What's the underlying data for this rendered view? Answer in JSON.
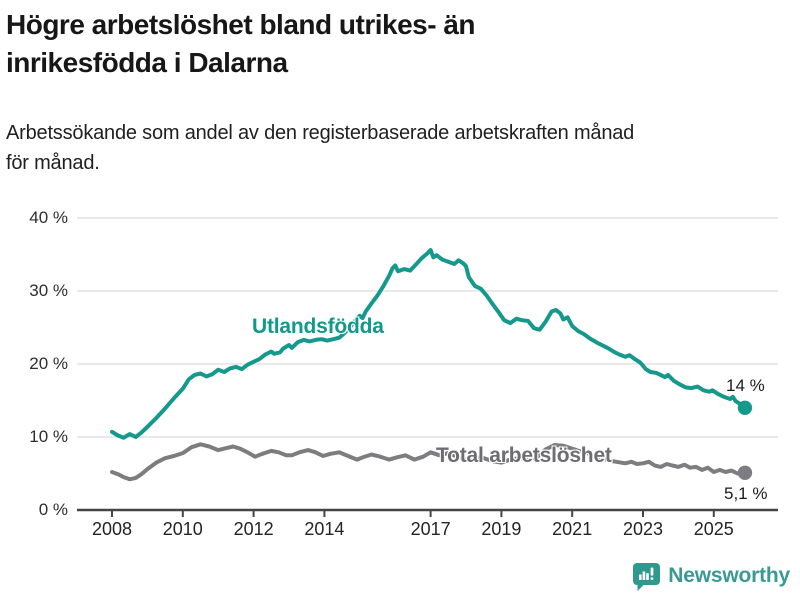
{
  "header": {
    "title_lines": [
      "Högre arbetslöshet bland utrikes- än",
      "inrikesfödda i Dalarna"
    ],
    "subtitle_lines": [
      "Arbetssökande som andel av den registerbaserade arbetskraften månad",
      "för månad."
    ]
  },
  "colors": {
    "teal_line": "#14998c",
    "gray_line": "#7c7c81",
    "teal_label": "#0f9a8c",
    "gray_label": "#6c6c71",
    "grid": "#dcdcdc",
    "axis": "#454545",
    "logo": "#2f9990"
  },
  "chart_data": {
    "type": "line",
    "title": "Högre arbetslöshet bland utrikes- än inrikesfödda i Dalarna",
    "subtitle": "Arbetssökande som andel av den registerbaserade arbetskraften månad för månad.",
    "xlabel": "",
    "ylabel": "",
    "grid": "horizontal",
    "ylim": [
      0,
      43
    ],
    "y_ticks": [
      40,
      30,
      20,
      10,
      0
    ],
    "y_tick_suffix": " %",
    "x_ticks": [
      2008,
      2010,
      2012,
      2014,
      2017,
      2019,
      2021,
      2023,
      2025
    ],
    "series": [
      {
        "name": "Utlandsfödda",
        "end_label": "14 %",
        "end_value": 14,
        "points": [
          [
            2008.0,
            10.7
          ],
          [
            2008.17,
            10.2
          ],
          [
            2008.33,
            9.9
          ],
          [
            2008.5,
            10.4
          ],
          [
            2008.67,
            10.0
          ],
          [
            2008.83,
            10.6
          ],
          [
            2009.0,
            11.4
          ],
          [
            2009.25,
            12.6
          ],
          [
            2009.5,
            13.9
          ],
          [
            2009.75,
            15.3
          ],
          [
            2010.0,
            16.6
          ],
          [
            2010.17,
            17.9
          ],
          [
            2010.33,
            18.5
          ],
          [
            2010.5,
            18.7
          ],
          [
            2010.67,
            18.3
          ],
          [
            2010.83,
            18.6
          ],
          [
            2011.0,
            19.2
          ],
          [
            2011.17,
            18.9
          ],
          [
            2011.33,
            19.4
          ],
          [
            2011.5,
            19.6
          ],
          [
            2011.67,
            19.3
          ],
          [
            2011.83,
            19.9
          ],
          [
            2012.0,
            20.3
          ],
          [
            2012.17,
            20.7
          ],
          [
            2012.33,
            21.3
          ],
          [
            2012.5,
            21.7
          ],
          [
            2012.58,
            21.4
          ],
          [
            2012.75,
            21.6
          ],
          [
            2012.83,
            22.1
          ],
          [
            2013.0,
            22.6
          ],
          [
            2013.08,
            22.2
          ],
          [
            2013.25,
            23.0
          ],
          [
            2013.42,
            23.3
          ],
          [
            2013.58,
            23.1
          ],
          [
            2013.75,
            23.3
          ],
          [
            2013.92,
            23.4
          ],
          [
            2014.08,
            23.2
          ],
          [
            2014.25,
            23.4
          ],
          [
            2014.42,
            23.6
          ],
          [
            2014.58,
            24.3
          ],
          [
            2014.75,
            25.2
          ],
          [
            2014.92,
            26.2
          ],
          [
            2015.0,
            26.6
          ],
          [
            2015.08,
            26.3
          ],
          [
            2015.17,
            27.2
          ],
          [
            2015.33,
            28.3
          ],
          [
            2015.5,
            29.4
          ],
          [
            2015.67,
            30.7
          ],
          [
            2015.83,
            32.1
          ],
          [
            2015.92,
            33.1
          ],
          [
            2016.0,
            33.5
          ],
          [
            2016.08,
            32.7
          ],
          [
            2016.25,
            33.0
          ],
          [
            2016.42,
            32.8
          ],
          [
            2016.58,
            33.6
          ],
          [
            2016.75,
            34.5
          ],
          [
            2016.92,
            35.2
          ],
          [
            2017.0,
            35.6
          ],
          [
            2017.08,
            34.6
          ],
          [
            2017.17,
            34.9
          ],
          [
            2017.33,
            34.3
          ],
          [
            2017.5,
            34.0
          ],
          [
            2017.67,
            33.7
          ],
          [
            2017.79,
            34.2
          ],
          [
            2017.92,
            33.8
          ],
          [
            2018.0,
            33.4
          ],
          [
            2018.08,
            31.9
          ],
          [
            2018.25,
            30.7
          ],
          [
            2018.42,
            30.3
          ],
          [
            2018.58,
            29.4
          ],
          [
            2018.75,
            28.2
          ],
          [
            2018.92,
            27.1
          ],
          [
            2019.08,
            26.0
          ],
          [
            2019.25,
            25.6
          ],
          [
            2019.42,
            26.2
          ],
          [
            2019.58,
            26.0
          ],
          [
            2019.75,
            25.9
          ],
          [
            2019.92,
            24.9
          ],
          [
            2020.08,
            24.7
          ],
          [
            2020.25,
            25.8
          ],
          [
            2020.42,
            27.2
          ],
          [
            2020.54,
            27.4
          ],
          [
            2020.67,
            26.9
          ],
          [
            2020.75,
            26.1
          ],
          [
            2020.87,
            26.4
          ],
          [
            2021.0,
            25.2
          ],
          [
            2021.17,
            24.5
          ],
          [
            2021.33,
            24.1
          ],
          [
            2021.5,
            23.5
          ],
          [
            2021.75,
            22.8
          ],
          [
            2022.0,
            22.2
          ],
          [
            2022.17,
            21.7
          ],
          [
            2022.33,
            21.3
          ],
          [
            2022.5,
            21.0
          ],
          [
            2022.62,
            21.2
          ],
          [
            2022.79,
            20.6
          ],
          [
            2022.92,
            20.2
          ],
          [
            2023.08,
            19.3
          ],
          [
            2023.21,
            18.9
          ],
          [
            2023.37,
            18.8
          ],
          [
            2023.54,
            18.4
          ],
          [
            2023.62,
            18.2
          ],
          [
            2023.71,
            18.5
          ],
          [
            2023.87,
            17.7
          ],
          [
            2024.04,
            17.2
          ],
          [
            2024.21,
            16.8
          ],
          [
            2024.37,
            16.7
          ],
          [
            2024.54,
            16.9
          ],
          [
            2024.71,
            16.4
          ],
          [
            2024.87,
            16.2
          ],
          [
            2024.96,
            16.4
          ],
          [
            2025.12,
            15.9
          ],
          [
            2025.29,
            15.5
          ],
          [
            2025.46,
            15.2
          ],
          [
            2025.54,
            15.5
          ],
          [
            2025.62,
            14.9
          ],
          [
            2025.75,
            14.5
          ],
          [
            2025.88,
            14.0
          ]
        ]
      },
      {
        "name": "Total arbetslöshet",
        "end_label": "5,1 %",
        "end_value": 5.1,
        "points": [
          [
            2008.0,
            5.2
          ],
          [
            2008.17,
            4.9
          ],
          [
            2008.33,
            4.5
          ],
          [
            2008.5,
            4.2
          ],
          [
            2008.67,
            4.4
          ],
          [
            2008.83,
            4.9
          ],
          [
            2009.0,
            5.6
          ],
          [
            2009.25,
            6.5
          ],
          [
            2009.5,
            7.1
          ],
          [
            2009.75,
            7.4
          ],
          [
            2010.0,
            7.8
          ],
          [
            2010.25,
            8.6
          ],
          [
            2010.5,
            9.0
          ],
          [
            2010.75,
            8.7
          ],
          [
            2011.0,
            8.2
          ],
          [
            2011.25,
            8.5
          ],
          [
            2011.42,
            8.7
          ],
          [
            2011.62,
            8.4
          ],
          [
            2011.83,
            7.9
          ],
          [
            2012.04,
            7.3
          ],
          [
            2012.25,
            7.7
          ],
          [
            2012.5,
            8.1
          ],
          [
            2012.71,
            7.9
          ],
          [
            2012.92,
            7.5
          ],
          [
            2013.08,
            7.5
          ],
          [
            2013.29,
            7.9
          ],
          [
            2013.54,
            8.2
          ],
          [
            2013.75,
            7.9
          ],
          [
            2013.96,
            7.4
          ],
          [
            2014.17,
            7.7
          ],
          [
            2014.42,
            7.9
          ],
          [
            2014.67,
            7.4
          ],
          [
            2014.92,
            6.9
          ],
          [
            2015.08,
            7.2
          ],
          [
            2015.33,
            7.6
          ],
          [
            2015.58,
            7.3
          ],
          [
            2015.83,
            6.9
          ],
          [
            2016.04,
            7.2
          ],
          [
            2016.29,
            7.5
          ],
          [
            2016.54,
            6.9
          ],
          [
            2016.79,
            7.3
          ],
          [
            2017.0,
            7.9
          ],
          [
            2017.25,
            7.5
          ],
          [
            2017.5,
            7.8
          ],
          [
            2017.75,
            7.3
          ],
          [
            2018.0,
            6.9
          ],
          [
            2018.25,
            7.2
          ],
          [
            2018.5,
            7.1
          ],
          [
            2018.75,
            6.7
          ],
          [
            2019.0,
            6.5
          ],
          [
            2019.25,
            6.9
          ],
          [
            2019.5,
            7.1
          ],
          [
            2019.75,
            6.9
          ],
          [
            2020.0,
            7.2
          ],
          [
            2020.25,
            8.3
          ],
          [
            2020.5,
            8.9
          ],
          [
            2020.75,
            8.8
          ],
          [
            2021.0,
            8.4
          ],
          [
            2021.25,
            8.0
          ],
          [
            2021.5,
            7.7
          ],
          [
            2021.75,
            7.2
          ],
          [
            2022.0,
            6.8
          ],
          [
            2022.25,
            6.6
          ],
          [
            2022.5,
            6.4
          ],
          [
            2022.67,
            6.6
          ],
          [
            2022.83,
            6.3
          ],
          [
            2023.0,
            6.4
          ],
          [
            2023.17,
            6.6
          ],
          [
            2023.33,
            6.1
          ],
          [
            2023.5,
            5.9
          ],
          [
            2023.67,
            6.3
          ],
          [
            2023.83,
            6.1
          ],
          [
            2024.0,
            5.9
          ],
          [
            2024.17,
            6.2
          ],
          [
            2024.33,
            5.8
          ],
          [
            2024.5,
            5.9
          ],
          [
            2024.67,
            5.5
          ],
          [
            2024.83,
            5.8
          ],
          [
            2025.0,
            5.2
          ],
          [
            2025.17,
            5.5
          ],
          [
            2025.33,
            5.2
          ],
          [
            2025.5,
            5.4
          ],
          [
            2025.67,
            5.0
          ],
          [
            2025.88,
            5.1
          ]
        ]
      }
    ]
  },
  "footer": {
    "brand": "Newsworthy"
  }
}
